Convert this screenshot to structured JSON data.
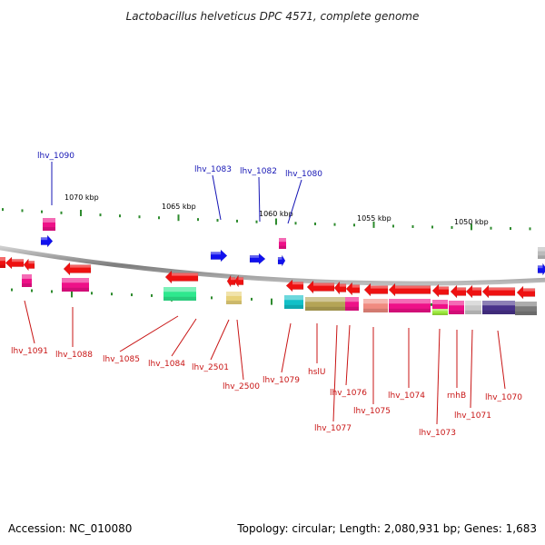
{
  "title": "Lactobacillus helveticus DPC 4571, complete genome",
  "footer": {
    "accession": "Accession: NC_010080",
    "summary": "Topology: circular; Length: 2,080,931 bp; Genes: 1,683"
  },
  "colors": {
    "backbone": "#9a9a9a",
    "tick": "#2e8b2e",
    "label_forward": "#1515b5",
    "label_reverse": "#c81414",
    "gene_red": "#ee1111",
    "gene_blue": "#1111ee",
    "gene_magenta": "#ee1188"
  },
  "ruler_labels": [
    "1070 kbp",
    "1065 kbp",
    "1060 kbp",
    "1055 kbp",
    "1050 kbp"
  ],
  "forward_labels": [
    "lhv_1090",
    "lhv_1083",
    "lhv_1082",
    "lhv_1080"
  ],
  "reverse_labels": [
    "lhv_1091",
    "lhv_1088",
    "lhv_1085",
    "lhv_1084",
    "lhv_2501",
    "lhv_2500",
    "lhv_1079",
    "hslU",
    "lhv_1076",
    "lhv_1077",
    "lhv_1075",
    "lhv_1074",
    "lhv_1073",
    "rnhB",
    "lhv_1071",
    "lhv_1070"
  ]
}
